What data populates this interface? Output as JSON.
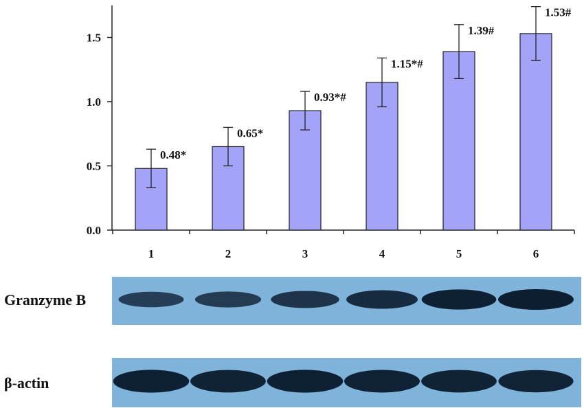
{
  "chart_data": {
    "type": "bar",
    "categories": [
      "1",
      "2",
      "3",
      "4",
      "5",
      "6"
    ],
    "values": [
      0.48,
      0.65,
      0.93,
      1.15,
      1.39,
      1.53
    ],
    "errors": [
      0.15,
      0.15,
      0.15,
      0.19,
      0.21,
      0.21
    ],
    "data_labels": [
      "0.48*",
      "0.65*",
      "0.93*#",
      "1.15*#",
      "1.39#",
      "1.53#"
    ],
    "yticks": [
      "0.0",
      "0.5",
      "1.0",
      "1.5"
    ],
    "ylim": [
      0,
      1.75
    ],
    "title": "",
    "xlabel": "",
    "ylabel": "",
    "bar_color": "#a3a3f7",
    "bar_edge_color": "#222222"
  },
  "blots": [
    {
      "label": "Granzyme B",
      "intensities": [
        0.45,
        0.5,
        0.62,
        0.78,
        0.95,
        1.0
      ]
    },
    {
      "label": "β-actin",
      "intensities": [
        0.95,
        0.92,
        0.95,
        0.93,
        0.92,
        0.9
      ]
    }
  ],
  "colors": {
    "blot_bg": "#7fb3d9",
    "band": "#0c1e30"
  }
}
